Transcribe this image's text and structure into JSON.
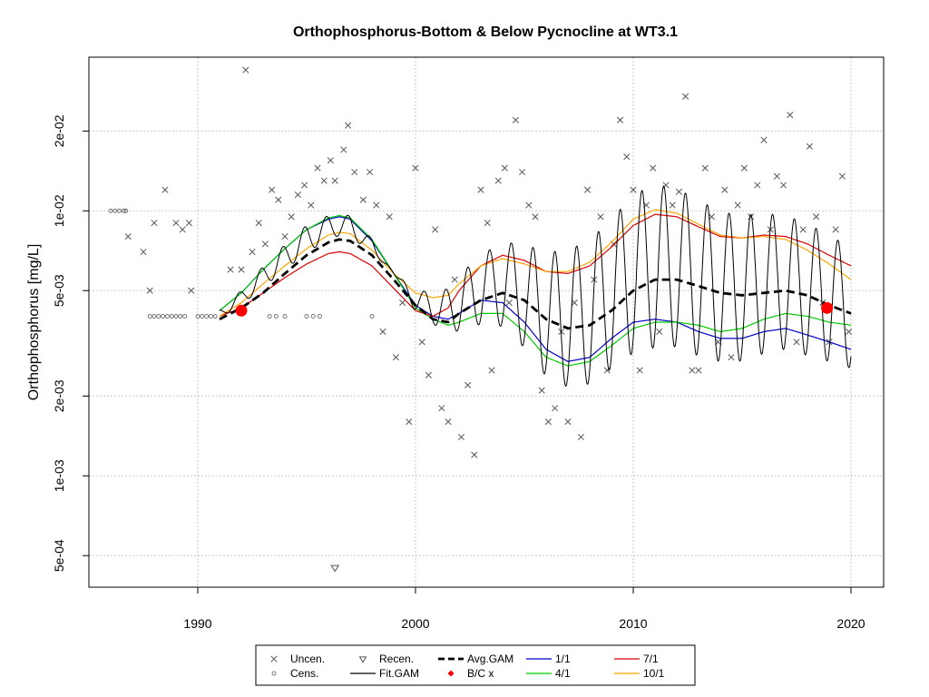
{
  "chart_data": {
    "type": "scatter",
    "title": "Orthophosphorus-Bottom & Below Pycnocline at WT3.1",
    "xlabel": "",
    "ylabel": "Orthophosphorus [mg/L]",
    "y_scale": "log",
    "xlim": [
      1985,
      2021.5
    ],
    "ylim": [
      0.00038,
      0.038
    ],
    "x_ticks": [
      1990,
      2000,
      2010,
      2020
    ],
    "x_tick_labels": [
      "1990",
      "2000",
      "2010",
      "2020"
    ],
    "y_ticks": [
      0.0005,
      0.001,
      0.002,
      0.005,
      0.01,
      0.02
    ],
    "y_tick_labels": [
      "5e-04",
      "1e-03",
      "2e-03",
      "5e-03",
      "1e-02",
      "2e-02"
    ],
    "grid": true,
    "legend_position": "bottom",
    "legend": [
      {
        "label": "Uncen.",
        "symbol": "x",
        "color": "#555555"
      },
      {
        "label": "Cens.",
        "symbol": "circle",
        "color": "#555555"
      },
      {
        "label": "Recen.",
        "symbol": "triangle-down",
        "color": "#555555"
      },
      {
        "label": "Fit.GAM",
        "symbol": "line",
        "color": "#000000"
      },
      {
        "label": "Avg.GAM",
        "symbol": "dashed",
        "color": "#000000"
      },
      {
        "label": "B/C x",
        "symbol": "diamond",
        "color": "#ff0000"
      },
      {
        "label": "1/1",
        "symbol": "line",
        "color": "#0000cc"
      },
      {
        "label": "4/1",
        "symbol": "line",
        "color": "#00cc00"
      },
      {
        "label": "7/1",
        "symbol": "line",
        "color": "#dd0000"
      },
      {
        "label": "10/1",
        "symbol": "line",
        "color": "#ffa500"
      }
    ],
    "series": [
      {
        "name": "Avg.GAM",
        "color": "#000000",
        "x": [
          1991.0,
          1992,
          1993,
          1994,
          1995,
          1996,
          1996.5,
          1997,
          1998,
          1999,
          2000,
          2000.8,
          2001.5,
          2002,
          2003,
          2004,
          2005,
          2006,
          2007,
          2008,
          2009,
          2010,
          2011,
          2012,
          2013,
          2014,
          2015,
          2016,
          2017,
          2018,
          2019,
          2020
        ],
        "y": [
          0.0039,
          0.0043,
          0.0049,
          0.0058,
          0.0068,
          0.0076,
          0.0078,
          0.0077,
          0.0068,
          0.0055,
          0.0044,
          0.0039,
          0.0038,
          0.0041,
          0.0046,
          0.0049,
          0.0046,
          0.0039,
          0.0036,
          0.0037,
          0.0042,
          0.005,
          0.0055,
          0.0055,
          0.0052,
          0.0049,
          0.0048,
          0.0049,
          0.005,
          0.0048,
          0.0044,
          0.0041
        ]
      },
      {
        "name": "1/1",
        "color": "#0000cc",
        "x": [
          1991.0,
          1992,
          1993,
          1994,
          1995,
          1996,
          1996.5,
          1997,
          1998,
          1999,
          2000,
          2000.8,
          2001.5,
          2002,
          2003,
          2004,
          2005,
          2006,
          2007,
          2008,
          2009,
          2010,
          2011,
          2012,
          2013,
          2014,
          2015,
          2016,
          2017,
          2018,
          2019,
          2020
        ],
        "y": [
          0.0042,
          0.0049,
          0.006,
          0.0072,
          0.0085,
          0.0093,
          0.0095,
          0.0093,
          0.0077,
          0.0058,
          0.0044,
          0.004,
          0.0039,
          0.0041,
          0.0046,
          0.0045,
          0.0038,
          0.003,
          0.0027,
          0.0028,
          0.0033,
          0.0038,
          0.0039,
          0.0038,
          0.0035,
          0.0033,
          0.0033,
          0.0035,
          0.0036,
          0.0034,
          0.0032,
          0.003
        ]
      },
      {
        "name": "4/1",
        "color": "#00cc00",
        "x": [
          1991.0,
          1992,
          1993,
          1994,
          1995,
          1996,
          1996.5,
          1997,
          1998,
          1999,
          2000,
          2000.8,
          2001.5,
          2002,
          2003,
          2004,
          2005,
          2006,
          2007,
          2008,
          2009,
          2010,
          2011,
          2012,
          2013,
          2014,
          2015,
          2016,
          2017,
          2018,
          2019,
          2020
        ],
        "y": [
          0.0042,
          0.0049,
          0.006,
          0.0072,
          0.0085,
          0.0094,
          0.0096,
          0.0094,
          0.0078,
          0.0058,
          0.0043,
          0.0039,
          0.0037,
          0.0038,
          0.0041,
          0.0041,
          0.0035,
          0.0028,
          0.0026,
          0.0027,
          0.0031,
          0.0036,
          0.0038,
          0.0038,
          0.0037,
          0.0035,
          0.0036,
          0.0039,
          0.0041,
          0.004,
          0.0038,
          0.0037
        ]
      },
      {
        "name": "7/1",
        "color": "#dd0000",
        "x": [
          1991.0,
          1992,
          1993,
          1994,
          1995,
          1996,
          1996.5,
          1997,
          1998,
          1999,
          2000,
          2000.8,
          2001.5,
          2002,
          2003,
          2004,
          2005,
          2006,
          2007,
          2008,
          2009,
          2010,
          2011,
          2012,
          2013,
          2014,
          2015,
          2016,
          2017,
          2018,
          2019,
          2020
        ],
        "y": [
          0.004,
          0.0043,
          0.0049,
          0.0056,
          0.0063,
          0.0069,
          0.007,
          0.0069,
          0.0062,
          0.0051,
          0.0042,
          0.004,
          0.0043,
          0.005,
          0.0062,
          0.0068,
          0.0065,
          0.0059,
          0.0058,
          0.0062,
          0.0073,
          0.0088,
          0.0097,
          0.0095,
          0.0087,
          0.008,
          0.0079,
          0.0081,
          0.008,
          0.0075,
          0.0068,
          0.0062
        ]
      },
      {
        "name": "10/1",
        "color": "#ffa500",
        "x": [
          1991.0,
          1992,
          1993,
          1994,
          1995,
          1996,
          1996.5,
          1997,
          1998,
          1999,
          2000,
          2000.8,
          2001.5,
          2002,
          2003,
          2004,
          2005,
          2006,
          2007,
          2008,
          2009,
          2010,
          2011,
          2012,
          2013,
          2014,
          2015,
          2016,
          2017,
          2018,
          2019,
          2020
        ],
        "y": [
          0.004,
          0.0045,
          0.0053,
          0.0062,
          0.0072,
          0.0081,
          0.0083,
          0.0082,
          0.0071,
          0.0058,
          0.0049,
          0.0047,
          0.0048,
          0.0053,
          0.0062,
          0.0066,
          0.0063,
          0.0059,
          0.0059,
          0.0064,
          0.0076,
          0.0093,
          0.0101,
          0.0098,
          0.0089,
          0.0081,
          0.0079,
          0.008,
          0.0078,
          0.0071,
          0.0063,
          0.0055
        ]
      },
      {
        "name": "B/C x",
        "color": "#ff0000",
        "x": [
          1992.0,
          2018.9
        ],
        "y": [
          0.0042,
          0.0043
        ]
      },
      {
        "name": "Uncen.",
        "color": "#555555",
        "x": [
          1986.8,
          1987.5,
          1987.8,
          1988.0,
          1988.5,
          1989.0,
          1989.3,
          1989.6,
          1989.7,
          1991.5,
          1992.0,
          1992.2,
          1992.5,
          1992.8,
          1993.1,
          1993.4,
          1993.7,
          1994.0,
          1994.3,
          1994.6,
          1994.9,
          1995.2,
          1995.5,
          1995.8,
          1996.1,
          1996.3,
          1996.7,
          1996.9,
          1997.2,
          1997.6,
          1997.9,
          1998.2,
          1998.5,
          1998.8,
          1999.1,
          1999.4,
          1999.7,
          2000.0,
          2000.3,
          2000.6,
          2000.9,
          2001.2,
          2001.5,
          2001.8,
          2002.1,
          2002.4,
          2002.7,
          2003.0,
          2003.3,
          2003.5,
          2003.8,
          2004.1,
          2004.3,
          2004.6,
          2004.9,
          2005.2,
          2005.5,
          2005.8,
          2006.1,
          2006.4,
          2006.7,
          2007.0,
          2007.3,
          2007.6,
          2007.9,
          2008.2,
          2008.5,
          2008.8,
          2009.1,
          2009.4,
          2009.7,
          2010.0,
          2010.3,
          2010.6,
          2010.9,
          2011.2,
          2011.5,
          2011.8,
          2012.1,
          2012.4,
          2012.7,
          2013.0,
          2013.3,
          2013.6,
          2013.9,
          2014.2,
          2014.5,
          2014.8,
          2015.1,
          2015.4,
          2015.7,
          2016.0,
          2016.3,
          2016.6,
          2016.9,
          2017.2,
          2017.5,
          2017.8,
          2018.1,
          2018.4,
          2018.7,
          2019.0,
          2019.3,
          2019.6,
          2019.9
        ],
        "y": [
          0.008,
          0.007,
          0.005,
          0.009,
          0.012,
          0.009,
          0.0085,
          0.009,
          0.005,
          0.006,
          0.006,
          0.034,
          0.007,
          0.009,
          0.0075,
          0.012,
          0.011,
          0.008,
          0.0095,
          0.0115,
          0.0125,
          0.0105,
          0.0145,
          0.013,
          0.0155,
          0.013,
          0.017,
          0.021,
          0.014,
          0.011,
          0.014,
          0.0105,
          0.0035,
          0.0095,
          0.0028,
          0.0045,
          0.0016,
          0.0145,
          0.0032,
          0.0024,
          0.0085,
          0.0018,
          0.0016,
          0.0055,
          0.0014,
          0.0022,
          0.0012,
          0.012,
          0.009,
          0.0025,
          0.013,
          0.0145,
          0.0045,
          0.022,
          0.014,
          0.0105,
          0.0095,
          0.0021,
          0.0016,
          0.0018,
          0.0035,
          0.0016,
          0.0045,
          0.0014,
          0.012,
          0.0055,
          0.0095,
          0.0025,
          0.0075,
          0.022,
          0.016,
          0.012,
          0.0025,
          0.0105,
          0.0145,
          0.0035,
          0.0125,
          0.0105,
          0.0118,
          0.027,
          0.0025,
          0.0025,
          0.0145,
          0.0095,
          0.0032,
          0.012,
          0.0028,
          0.0105,
          0.0145,
          0.0095,
          0.0125,
          0.0185,
          0.0085,
          0.0135,
          0.0125,
          0.023,
          0.0032,
          0.0085,
          0.0175,
          0.0095,
          0.0045,
          0.0032,
          0.0085,
          0.0135,
          0.0035
        ]
      },
      {
        "name": "Cens.",
        "color": "#555555",
        "x": [
          1986.0,
          1986.2,
          1986.4,
          1986.6,
          1986.7,
          1987.8,
          1988.0,
          1988.2,
          1988.4,
          1988.6,
          1988.8,
          1989.0,
          1989.2,
          1989.4,
          1990.0,
          1990.2,
          1990.4,
          1990.6,
          1990.8,
          1993.3,
          1993.6,
          1994.0,
          1995.0,
          1995.3,
          1995.6,
          1998.0
        ],
        "y": [
          0.01,
          0.01,
          0.01,
          0.01,
          0.01,
          0.004,
          0.004,
          0.004,
          0.004,
          0.004,
          0.004,
          0.004,
          0.004,
          0.004,
          0.004,
          0.004,
          0.004,
          0.004,
          0.004,
          0.004,
          0.004,
          0.004,
          0.004,
          0.004,
          0.004,
          0.004
        ]
      },
      {
        "name": "Recen.",
        "color": "#555555",
        "x": [
          1996.3
        ],
        "y": [
          0.00045
        ]
      }
    ]
  }
}
